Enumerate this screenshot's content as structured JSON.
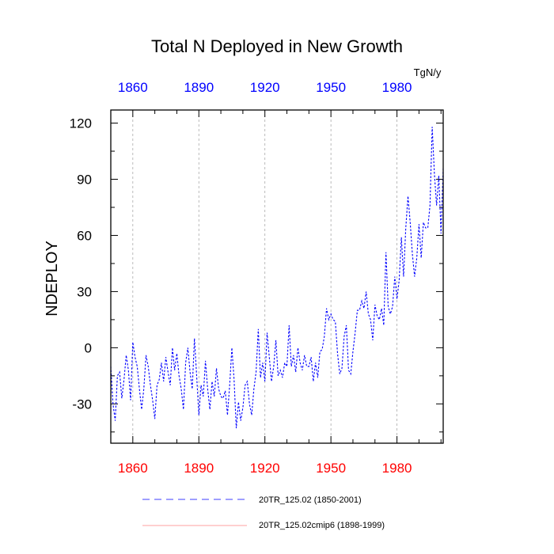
{
  "chart_data": {
    "type": "line",
    "title": "Total N Deployed in New Growth",
    "ylabel": "NDEPLOY",
    "units": "TgN/y",
    "xlim": [
      1850,
      2001
    ],
    "ylim": [
      -51,
      127
    ],
    "x_ticks": [
      1860,
      1890,
      1920,
      1950,
      1980
    ],
    "x_tick_labels": [
      "1860",
      "1890",
      "1920",
      "1950",
      "1980"
    ],
    "y_ticks": [
      -30,
      0,
      30,
      60,
      90,
      120
    ],
    "y_tick_labels": [
      "-30",
      "0",
      "30",
      "60",
      "90",
      "120"
    ],
    "colors": {
      "top_axis": "#0000ff",
      "bottom_axis": "#ff0000",
      "series1": "#0000ff",
      "series2": "#ff8080",
      "grid": "#aaaaaa"
    },
    "series": [
      {
        "name": "20TR_125.02 (1850-2001)",
        "style": "dashed",
        "color": "#0000ff",
        "x": [
          1850,
          1851,
          1852,
          1853,
          1854,
          1855,
          1856,
          1857,
          1858,
          1859,
          1860,
          1861,
          1862,
          1863,
          1864,
          1865,
          1866,
          1867,
          1868,
          1869,
          1870,
          1871,
          1872,
          1873,
          1874,
          1875,
          1876,
          1877,
          1878,
          1879,
          1880,
          1881,
          1882,
          1883,
          1884,
          1885,
          1886,
          1887,
          1888,
          1889,
          1890,
          1891,
          1892,
          1893,
          1894,
          1895,
          1896,
          1897,
          1898,
          1899,
          1900,
          1901,
          1902,
          1903,
          1904,
          1905,
          1906,
          1907,
          1908,
          1909,
          1910,
          1911,
          1912,
          1913,
          1914,
          1915,
          1916,
          1917,
          1918,
          1919,
          1920,
          1921,
          1922,
          1923,
          1924,
          1925,
          1926,
          1927,
          1928,
          1929,
          1930,
          1931,
          1932,
          1933,
          1934,
          1935,
          1936,
          1937,
          1938,
          1939,
          1940,
          1941,
          1942,
          1943,
          1944,
          1945,
          1946,
          1947,
          1948,
          1949,
          1950,
          1951,
          1952,
          1953,
          1954,
          1955,
          1956,
          1957,
          1958,
          1959,
          1960,
          1961,
          1962,
          1963,
          1964,
          1965,
          1966,
          1967,
          1968,
          1969,
          1970,
          1971,
          1972,
          1973,
          1974,
          1975,
          1976,
          1977,
          1978,
          1979,
          1980,
          1981,
          1982,
          1983,
          1984,
          1985,
          1986,
          1987,
          1988,
          1989,
          1990,
          1991,
          1992,
          1993,
          1994,
          1995,
          1996,
          1997,
          1998,
          1999,
          2000,
          2001
        ],
        "values": [
          -10,
          -30,
          -39,
          -15,
          -13,
          -27,
          -17,
          -4,
          -12,
          -28,
          3,
          -5,
          -10,
          -22,
          -33,
          -22,
          -4,
          -10,
          -20,
          -28,
          -38,
          -20,
          -17,
          -8,
          -18,
          -5,
          -13,
          -20,
          0,
          -12,
          -3,
          -15,
          -22,
          -33,
          -8,
          0,
          -13,
          -22,
          5,
          -15,
          -36,
          -20,
          -26,
          -7,
          -22,
          -33,
          -18,
          -26,
          -11,
          -22,
          -26,
          -27,
          -23,
          -36,
          -20,
          0,
          -17,
          -43,
          -29,
          -39,
          -32,
          -20,
          -18,
          -30,
          -36,
          -22,
          -13,
          10,
          -16,
          -8,
          -18,
          8,
          -5,
          -18,
          -10,
          4,
          -15,
          -12,
          -16,
          -8,
          -10,
          12,
          -10,
          -4,
          -13,
          0,
          -8,
          -12,
          -4,
          -10,
          -10,
          -5,
          -18,
          -8,
          -16,
          -2,
          -1,
          6,
          21,
          15,
          18,
          15,
          14,
          -3,
          -14,
          -11,
          6,
          12,
          -12,
          -14,
          -2,
          8,
          20,
          20,
          25,
          21,
          30,
          18,
          15,
          4,
          23,
          17,
          15,
          21,
          12,
          51,
          22,
          18,
          22,
          38,
          26,
          36,
          59,
          38,
          64,
          81,
          67,
          50,
          38,
          48,
          66,
          48,
          67,
          64,
          64,
          76,
          118,
          93,
          76,
          92,
          61,
          96
        ]
      },
      {
        "name": "20TR_125.02cmip6 (1898-1999)",
        "style": "solid",
        "color": "#ff8080",
        "x": [],
        "values": []
      }
    ]
  }
}
